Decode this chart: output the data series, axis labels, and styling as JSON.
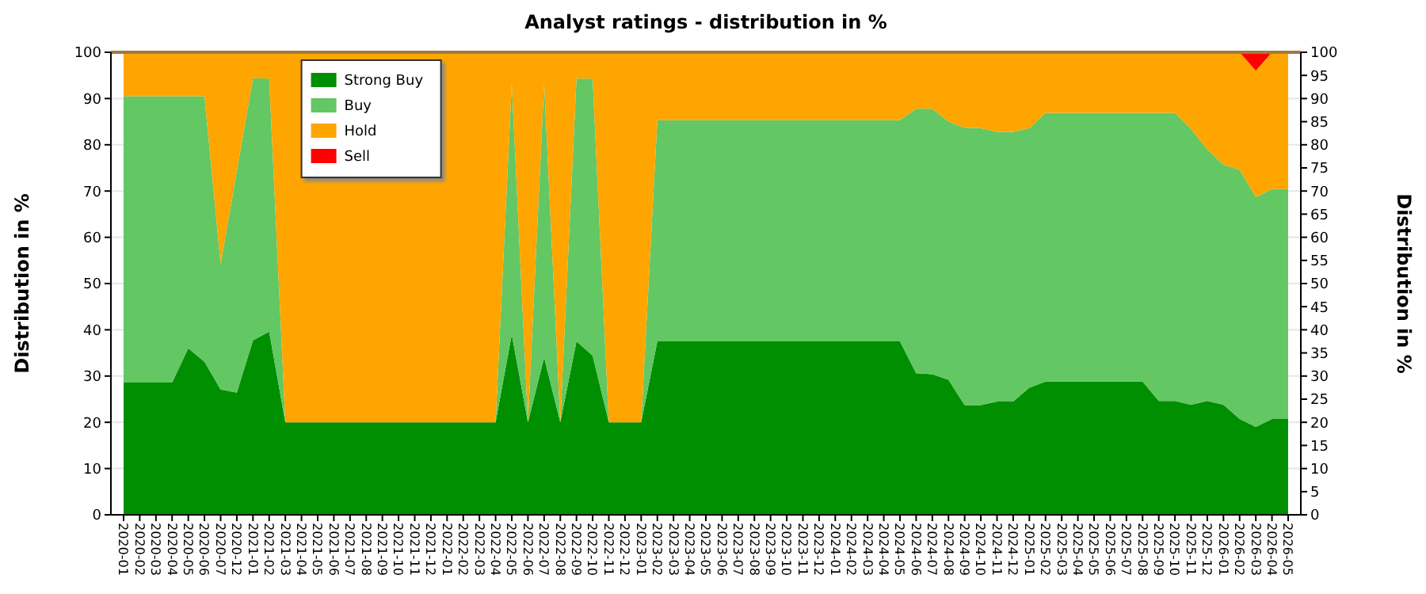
{
  "chart_data": {
    "type": "area",
    "stacked": true,
    "title": "Analyst ratings - distribution in %",
    "ylabel": "Distribution in %",
    "y2label": "Distribution in %",
    "categories": [
      "2020-01",
      "2020-02",
      "2020-03",
      "2020-04",
      "2020-05",
      "2020-06",
      "2020-07",
      "2020-12",
      "2021-01",
      "2021-02",
      "2021-03",
      "2021-04",
      "2021-05",
      "2021-06",
      "2021-07",
      "2021-08",
      "2021-09",
      "2021-10",
      "2021-11",
      "2021-12",
      "2022-01",
      "2022-02",
      "2022-03",
      "2022-04",
      "2022-05",
      "2022-06",
      "2022-07",
      "2022-08",
      "2022-09",
      "2022-10",
      "2022-11",
      "2022-12",
      "2023-01",
      "2023-02",
      "2023-03",
      "2023-04",
      "2023-05",
      "2023-06",
      "2023-07",
      "2023-08",
      "2023-09",
      "2023-10",
      "2023-11",
      "2023-12",
      "2024-01",
      "2024-02",
      "2024-03",
      "2024-04",
      "2024-05",
      "2024-06",
      "2024-07",
      "2024-08",
      "2024-09",
      "2024-10",
      "2024-11",
      "2024-12",
      "2025-01",
      "2025-02",
      "2025-03",
      "2025-04",
      "2025-05",
      "2025-06",
      "2025-07",
      "2025-08",
      "2025-09",
      "2025-10",
      "2025-11",
      "2025-12",
      "2026-01",
      "2026-02",
      "2026-03",
      "2026-04",
      "2026-05"
    ],
    "series": [
      {
        "name": "Strong Buy",
        "color": "#008f00",
        "values": [
          28.6,
          28.6,
          28.6,
          28.6,
          36,
          33.1,
          27.1,
          26.4,
          37.7,
          39.6,
          20,
          20,
          20,
          20,
          20,
          20,
          20,
          20,
          20,
          20,
          20,
          20,
          20,
          20,
          39,
          20,
          34,
          20,
          37.5,
          34.4,
          20,
          20,
          20,
          37.5,
          37.5,
          37.5,
          37.5,
          37.5,
          37.5,
          37.5,
          37.5,
          37.5,
          37.5,
          37.5,
          37.5,
          37.5,
          37.5,
          37.5,
          37.5,
          30.6,
          30.4,
          29.2,
          23.7,
          23.7,
          24.5,
          24.5,
          27.5,
          28.8,
          28.8,
          28.8,
          28.8,
          28.8,
          28.8,
          28.8,
          24.6,
          24.6,
          23.8,
          24.6,
          23.8,
          20.7,
          19,
          20.7,
          20.7
        ]
      },
      {
        "name": "Buy",
        "color": "#63c763",
        "values": [
          61.9,
          61.9,
          61.9,
          61.9,
          54.5,
          57.4,
          27.1,
          47.9,
          56.7,
          54.7,
          0,
          0,
          0,
          0,
          0,
          0,
          0,
          0,
          0,
          0,
          0,
          0,
          0,
          0,
          54.3,
          0,
          59.3,
          0,
          56.8,
          59.9,
          0,
          0,
          0,
          47.8,
          47.8,
          47.8,
          47.8,
          47.8,
          47.8,
          47.8,
          47.8,
          47.8,
          47.8,
          47.8,
          47.8,
          47.8,
          47.8,
          47.8,
          47.8,
          57.2,
          57.4,
          55.8,
          60,
          59.9,
          58.3,
          58.3,
          56.1,
          58.1,
          58.1,
          58.1,
          58.1,
          58.1,
          58.1,
          58.1,
          62.3,
          62.3,
          59.6,
          54.4,
          51.9,
          53.9,
          49.7,
          49.7,
          49.7
        ]
      },
      {
        "name": "Hold",
        "color": "#ffa500",
        "values": [
          9.5,
          9.5,
          9.5,
          9.5,
          9.5,
          9.5,
          45.8,
          25.7,
          5.6,
          5.7,
          80,
          80,
          80,
          80,
          80,
          80,
          80,
          80,
          80,
          80,
          80,
          80,
          80,
          80,
          6.7,
          80,
          6.7,
          80,
          5.7,
          5.7,
          80,
          80,
          80,
          14.7,
          14.7,
          14.7,
          14.7,
          14.7,
          14.7,
          14.7,
          14.7,
          14.7,
          14.7,
          14.7,
          14.7,
          14.7,
          14.7,
          14.7,
          14.7,
          12.2,
          12.2,
          15,
          16.3,
          16.4,
          17.2,
          17.2,
          16.4,
          13.1,
          13.1,
          13.1,
          13.1,
          13.1,
          13.1,
          13.1,
          13.1,
          13.1,
          16.6,
          21,
          24.3,
          25.4,
          27.3,
          29.6,
          29.6
        ]
      },
      {
        "name": "Sell",
        "color": "#ff0000",
        "values": [
          0,
          0,
          0,
          0,
          0,
          0,
          0,
          0,
          0,
          0,
          0,
          0,
          0,
          0,
          0,
          0,
          0,
          0,
          0,
          0,
          0,
          0,
          0,
          0,
          0,
          0,
          0,
          0,
          0,
          0,
          0,
          0,
          0,
          0,
          0,
          0,
          0,
          0,
          0,
          0,
          0,
          0,
          0,
          0,
          0,
          0,
          0,
          0,
          0,
          0,
          0,
          0,
          0,
          0,
          0,
          0,
          0,
          0,
          0,
          0,
          0,
          0,
          0,
          0,
          0,
          0,
          0,
          0,
          0,
          0,
          4,
          0,
          0
        ]
      }
    ],
    "ylim": [
      0,
      100
    ],
    "yticks": [
      0,
      10,
      20,
      30,
      40,
      50,
      60,
      70,
      80,
      90,
      100
    ],
    "y2lim": [
      0,
      100
    ],
    "y2ticks": [
      0,
      5,
      10,
      15,
      20,
      25,
      30,
      35,
      40,
      45,
      50,
      55,
      60,
      65,
      70,
      75,
      80,
      85,
      90,
      95,
      100
    ],
    "grid": "y",
    "legend": "top left"
  }
}
